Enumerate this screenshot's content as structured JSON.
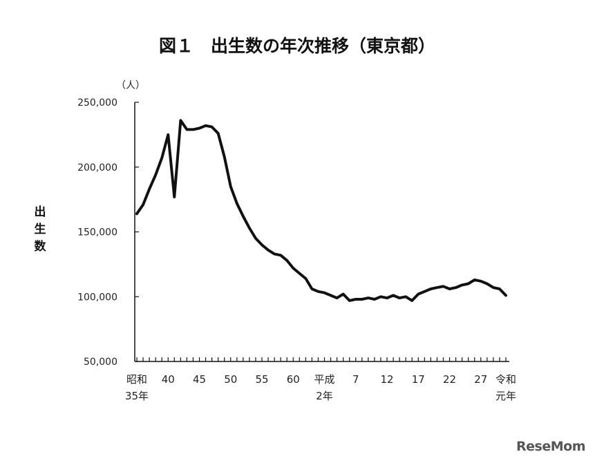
{
  "chart_data": {
    "type": "line",
    "title": "図１　出生数の年次推移（東京都）",
    "unit_label": "（人）",
    "ylabel": "出生数",
    "ylim": [
      50000,
      250000
    ],
    "yticks": [
      50000,
      100000,
      150000,
      200000,
      250000
    ],
    "ytick_labels": [
      "50,000",
      "100,000",
      "150,000",
      "200,000",
      "250,000"
    ],
    "x_labels": [
      {
        "index": 0,
        "lines": [
          "昭和",
          "35年"
        ]
      },
      {
        "index": 5,
        "lines": [
          "40"
        ]
      },
      {
        "index": 10,
        "lines": [
          "45"
        ]
      },
      {
        "index": 15,
        "lines": [
          "50"
        ]
      },
      {
        "index": 20,
        "lines": [
          "55"
        ]
      },
      {
        "index": 25,
        "lines": [
          "60"
        ]
      },
      {
        "index": 30,
        "lines": [
          "平成",
          "2年"
        ]
      },
      {
        "index": 35,
        "lines": [
          "7"
        ]
      },
      {
        "index": 40,
        "lines": [
          "12"
        ]
      },
      {
        "index": 45,
        "lines": [
          "17"
        ]
      },
      {
        "index": 50,
        "lines": [
          "22"
        ]
      },
      {
        "index": 55,
        "lines": [
          "27"
        ]
      },
      {
        "index": 59,
        "lines": [
          "令和",
          "元年"
        ]
      }
    ],
    "series": [
      {
        "values": [
          164000,
          171000,
          183000,
          194000,
          207000,
          225000,
          177000,
          236000,
          229000,
          229000,
          230000,
          232000,
          231000,
          226000,
          208000,
          185000,
          172000,
          162000,
          153000,
          145000,
          140000,
          136000,
          133000,
          132000,
          128000,
          122000,
          118000,
          114000,
          106000,
          104000,
          103000,
          101000,
          99000,
          102000,
          97000,
          98000,
          98000,
          99000,
          98000,
          100000,
          99000,
          101000,
          99000,
          100000,
          97000,
          102000,
          104000,
          106000,
          107000,
          108000,
          106000,
          107000,
          109000,
          110000,
          113000,
          112000,
          110000,
          107000,
          106000,
          101000
        ]
      }
    ]
  },
  "watermark": "ReseMom"
}
